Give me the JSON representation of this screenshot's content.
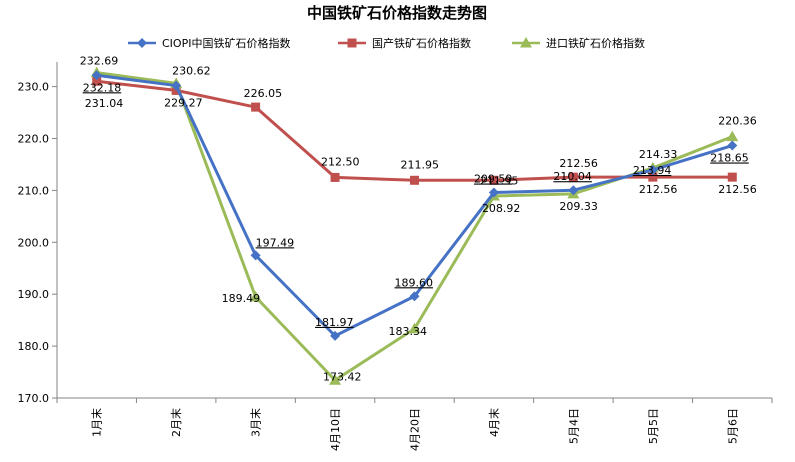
{
  "chart_data": {
    "type": "line",
    "title": "中国铁矿石价格指数走势图",
    "xlabel": "",
    "ylabel": "",
    "categories": [
      "1月末",
      "2月末",
      "3月末",
      "4月10日",
      "4月20日",
      "4月末",
      "5月4日",
      "5月5日",
      "5月6日"
    ],
    "ylim": [
      170,
      233
    ],
    "yticks": [
      "170.0",
      "180.0",
      "190.0",
      "200.0",
      "210.0",
      "220.0",
      "230.0"
    ],
    "grid": false,
    "legend_position": "top",
    "series": [
      {
        "name": "CIOPI中国铁矿石价格指数",
        "color": "#4572C4",
        "marker": "diamond",
        "values": [
          232.18,
          230.2,
          197.49,
          181.97,
          189.6,
          209.59,
          210.04,
          213.94,
          218.65
        ],
        "labels": [
          "232.18",
          "",
          "197.49",
          "181.97",
          "189.60",
          "209.59",
          "210.04",
          "213.94",
          "218.65"
        ]
      },
      {
        "name": "国产铁矿石价格指数",
        "color": "#C0504D",
        "marker": "square",
        "values": [
          231.04,
          229.27,
          226.05,
          212.5,
          211.95,
          211.95,
          212.56,
          212.56,
          212.56
        ],
        "labels": [
          "231.04",
          "229.27",
          "226.05",
          "212.50",
          "211.95",
          "211.95",
          "212.56",
          "212.56",
          "212.56"
        ]
      },
      {
        "name": "进口铁矿石价格指数",
        "color": "#9BBB59",
        "marker": "triangle",
        "values": [
          232.69,
          230.62,
          189.49,
          173.42,
          183.34,
          208.92,
          209.33,
          214.33,
          220.36
        ],
        "labels": [
          "232.69",
          "230.62",
          "189.49",
          "173.42",
          "183.34",
          "208.92",
          "209.33",
          "214.33",
          "220.36"
        ]
      }
    ]
  }
}
